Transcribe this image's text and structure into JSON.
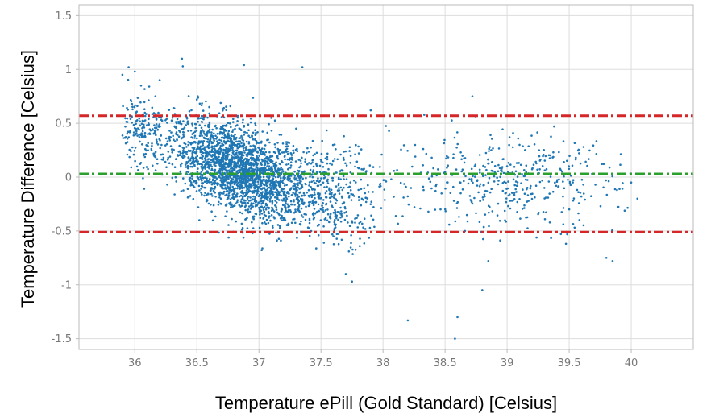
{
  "chart_data": {
    "type": "scatter",
    "title": "",
    "xlabel": "Temperature ePill (Gold Standard) [Celsius]",
    "ylabel": "Temperature Difference [Celsius]",
    "xlim": [
      35.55,
      40.5
    ],
    "ylim": [
      -1.6,
      1.6
    ],
    "x_ticks": [
      36,
      36.5,
      37,
      37.5,
      38,
      38.5,
      39,
      39.5,
      40
    ],
    "x_tick_labels": [
      "36",
      "36.5",
      "37",
      "37.5",
      "38",
      "38.5",
      "39",
      "39.5",
      "40"
    ],
    "y_ticks": [
      -1.5,
      -1,
      -0.5,
      0,
      0.5,
      1,
      1.5
    ],
    "y_tick_labels": [
      "-1.5",
      "-1",
      "-0.5",
      "0",
      "0.5",
      "1",
      "1.5"
    ],
    "grid": true,
    "colors": {
      "points": "#1f77b4",
      "mean_line": "#2ca02c",
      "limit_lines": "#d62728"
    },
    "reference_lines": [
      {
        "role": "upper limit of agreement",
        "y": 0.57,
        "style": "dash-dot",
        "color": "#d62728"
      },
      {
        "role": "mean difference",
        "y": 0.03,
        "style": "dash-dot",
        "color": "#2ca02c"
      },
      {
        "role": "lower limit of agreement",
        "y": -0.51,
        "style": "dash-dot",
        "color": "#d62728"
      }
    ],
    "point_count_approx": 3500,
    "points_sample": [
      [
        35.9,
        0.95
      ],
      [
        35.95,
        1.02
      ],
      [
        36.0,
        0.98
      ],
      [
        36.38,
        1.1
      ],
      [
        36.88,
        1.04
      ],
      [
        37.35,
        1.02
      ],
      [
        38.72,
        0.75
      ],
      [
        37.9,
        0.62
      ],
      [
        36.05,
        0.85
      ],
      [
        36.2,
        0.9
      ],
      [
        36.5,
        0.72
      ],
      [
        36.6,
        0.65
      ],
      [
        37.1,
        0.55
      ],
      [
        37.3,
        0.45
      ],
      [
        36.8,
        0.3
      ],
      [
        36.9,
        0.1
      ],
      [
        37.0,
        0.0
      ],
      [
        36.7,
        -0.1
      ],
      [
        37.2,
        -0.2
      ],
      [
        37.5,
        -0.3
      ],
      [
        37.6,
        -0.55
      ],
      [
        37.7,
        -0.9
      ],
      [
        37.75,
        -0.97
      ],
      [
        38.2,
        -1.33
      ],
      [
        38.58,
        -1.5
      ],
      [
        38.6,
        -1.3
      ],
      [
        38.8,
        -1.05
      ],
      [
        38.5,
        0.05
      ],
      [
        39.0,
        0.1
      ],
      [
        39.1,
        0.3
      ],
      [
        39.3,
        -0.1
      ],
      [
        39.5,
        -0.3
      ],
      [
        39.85,
        -0.78
      ],
      [
        39.8,
        -0.75
      ],
      [
        40.0,
        -0.05
      ],
      [
        40.05,
        -0.2
      ]
    ]
  }
}
